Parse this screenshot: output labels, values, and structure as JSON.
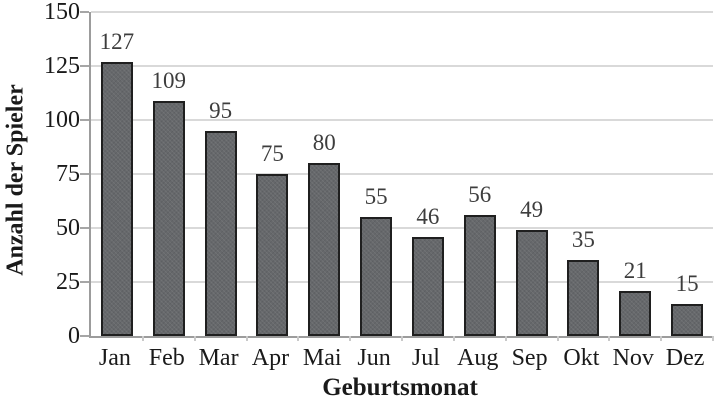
{
  "chart_data": {
    "type": "bar",
    "title": "",
    "categories": [
      "Jan",
      "Feb",
      "Mar",
      "Apr",
      "Mai",
      "Jun",
      "Jul",
      "Aug",
      "Sep",
      "Okt",
      "Nov",
      "Dez"
    ],
    "values": [
      127,
      109,
      95,
      75,
      80,
      55,
      46,
      56,
      49,
      35,
      21,
      15
    ],
    "xlabel": "Geburtsmonat",
    "ylabel": "Anzahl der Spieler",
    "ylim": [
      0,
      150
    ],
    "yticks": [
      0,
      25,
      50,
      75,
      100,
      125,
      150
    ],
    "grid": true,
    "legend": false,
    "data_labels_shown": true,
    "colors": {
      "bar_fill": "#66686b",
      "bar_border": "#1f1f1f",
      "gridline": "#d9d9d9",
      "axis_line": "#9c9c9c",
      "tick_text": "#1a1a1a",
      "value_label_text": "#3d3d3d",
      "background": "#ffffff"
    }
  }
}
